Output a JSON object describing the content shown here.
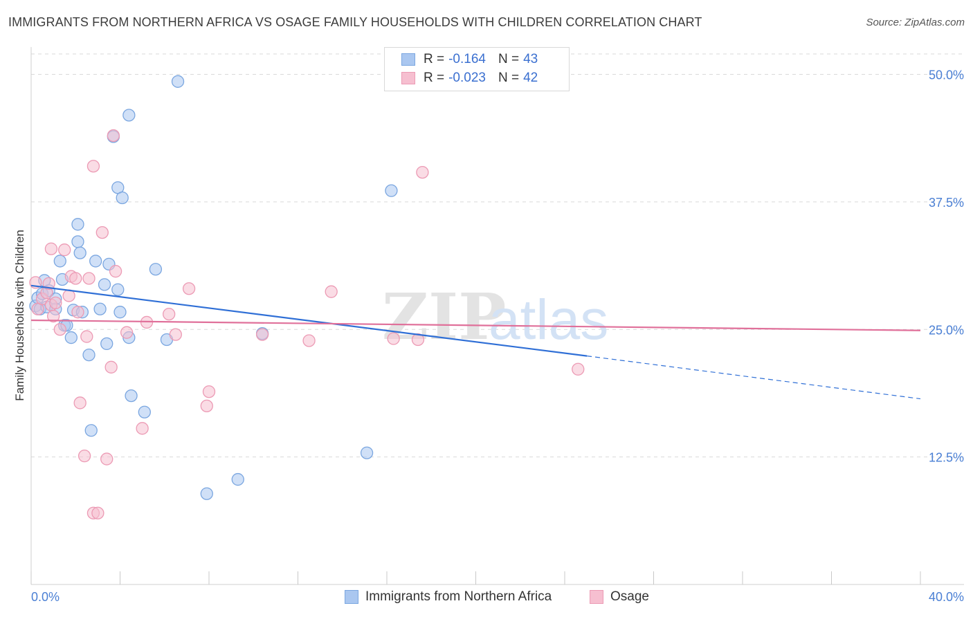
{
  "title": "IMMIGRANTS FROM NORTHERN AFRICA VS OSAGE FAMILY HOUSEHOLDS WITH CHILDREN CORRELATION CHART",
  "source": "Source: ZipAtlas.com",
  "watermark": {
    "zip": "ZIP",
    "atlas": "atlas"
  },
  "legend": {
    "r_label": "R =",
    "n_label": "N =",
    "series": [
      {
        "r": "-0.164",
        "n": "43"
      },
      {
        "r": "-0.023",
        "n": "42"
      }
    ]
  },
  "bottom_legend": [
    "Immigrants from Northern Africa",
    "Osage"
  ],
  "colors": {
    "blue_fill": "#aac7f0",
    "blue_stroke": "#7aa6e0",
    "blue_line": "#2f6fd6",
    "pink_fill": "#f6bfd0",
    "pink_stroke": "#ec9ab4",
    "pink_line": "#e0709a",
    "tick_text": "#4a7fd4",
    "grid": "#d9d9d9"
  },
  "chart_data": {
    "type": "scatter",
    "xlabel": "",
    "ylabel": "Family Households with Children",
    "xlim": [
      0,
      40
    ],
    "ylim": [
      0,
      52
    ],
    "x_tick_labels": [
      {
        "value": 0,
        "label": "0.0%"
      },
      {
        "value": 40,
        "label": "40.0%"
      }
    ],
    "y_tick_labels": [
      {
        "value": 12.5,
        "label": "12.5%"
      },
      {
        "value": 25,
        "label": "25.0%"
      },
      {
        "value": 37.5,
        "label": "37.5%"
      },
      {
        "value": 50,
        "label": "50.0%"
      }
    ],
    "grid": true,
    "series": [
      {
        "name": "Immigrants from Northern Africa",
        "points": [
          [
            0.2,
            27.3
          ],
          [
            0.3,
            28.1
          ],
          [
            0.4,
            27.0
          ],
          [
            0.5,
            28.5
          ],
          [
            0.6,
            29.8
          ],
          [
            0.7,
            27.2
          ],
          [
            0.8,
            28.8
          ],
          [
            1.1,
            28.0
          ],
          [
            1.1,
            27.0
          ],
          [
            1.3,
            31.7
          ],
          [
            1.4,
            29.9
          ],
          [
            1.5,
            25.4
          ],
          [
            1.6,
            25.4
          ],
          [
            1.8,
            24.2
          ],
          [
            1.9,
            26.9
          ],
          [
            2.1,
            35.3
          ],
          [
            2.1,
            33.6
          ],
          [
            2.2,
            32.5
          ],
          [
            2.3,
            26.7
          ],
          [
            2.6,
            22.5
          ],
          [
            2.7,
            15.1
          ],
          [
            2.9,
            31.7
          ],
          [
            3.1,
            27.0
          ],
          [
            3.3,
            29.4
          ],
          [
            3.4,
            23.6
          ],
          [
            3.5,
            31.4
          ],
          [
            3.7,
            43.9
          ],
          [
            3.9,
            38.9
          ],
          [
            3.9,
            28.9
          ],
          [
            4.0,
            26.7
          ],
          [
            4.1,
            37.9
          ],
          [
            4.4,
            46.0
          ],
          [
            4.4,
            24.2
          ],
          [
            4.5,
            18.5
          ],
          [
            5.1,
            16.9
          ],
          [
            5.6,
            30.9
          ],
          [
            6.1,
            24.0
          ],
          [
            6.6,
            49.3
          ],
          [
            7.9,
            8.9
          ],
          [
            9.3,
            10.3
          ],
          [
            10.4,
            24.6
          ],
          [
            15.1,
            12.9
          ],
          [
            16.2,
            38.6
          ]
        ]
      },
      {
        "name": "Osage",
        "points": [
          [
            0.2,
            29.6
          ],
          [
            0.3,
            27.0
          ],
          [
            0.5,
            28.0
          ],
          [
            0.7,
            28.6
          ],
          [
            0.8,
            29.5
          ],
          [
            0.9,
            27.4
          ],
          [
            0.9,
            32.9
          ],
          [
            1.0,
            26.3
          ],
          [
            1.1,
            27.6
          ],
          [
            1.3,
            25.0
          ],
          [
            1.5,
            32.8
          ],
          [
            1.7,
            28.3
          ],
          [
            1.8,
            30.2
          ],
          [
            2.0,
            30.0
          ],
          [
            2.1,
            26.7
          ],
          [
            2.2,
            17.8
          ],
          [
            2.4,
            12.6
          ],
          [
            2.5,
            24.3
          ],
          [
            2.6,
            30.0
          ],
          [
            2.8,
            7.0
          ],
          [
            2.8,
            41.0
          ],
          [
            3.0,
            7.0
          ],
          [
            3.2,
            34.5
          ],
          [
            3.4,
            12.3
          ],
          [
            3.6,
            21.3
          ],
          [
            3.7,
            44.0
          ],
          [
            3.8,
            30.7
          ],
          [
            4.3,
            24.7
          ],
          [
            5.0,
            15.3
          ],
          [
            5.2,
            25.7
          ],
          [
            6.2,
            26.5
          ],
          [
            6.5,
            24.5
          ],
          [
            7.1,
            29.0
          ],
          [
            7.9,
            17.5
          ],
          [
            8.0,
            18.9
          ],
          [
            10.4,
            24.5
          ],
          [
            12.5,
            23.9
          ],
          [
            13.5,
            28.7
          ],
          [
            16.3,
            24.1
          ],
          [
            17.4,
            24.0
          ],
          [
            17.6,
            40.4
          ],
          [
            24.6,
            21.1
          ]
        ]
      }
    ],
    "trend_lines": [
      {
        "series": "Immigrants from Northern Africa",
        "solid": {
          "x": [
            0.0,
            25.0
          ],
          "y": [
            29.3,
            22.4
          ]
        },
        "dashed": {
          "x": [
            25.0,
            40.0
          ],
          "y": [
            22.4,
            18.2
          ]
        }
      },
      {
        "series": "Osage",
        "solid": {
          "x": [
            0.0,
            40.0
          ],
          "y": [
            25.9,
            24.9
          ]
        }
      }
    ]
  }
}
